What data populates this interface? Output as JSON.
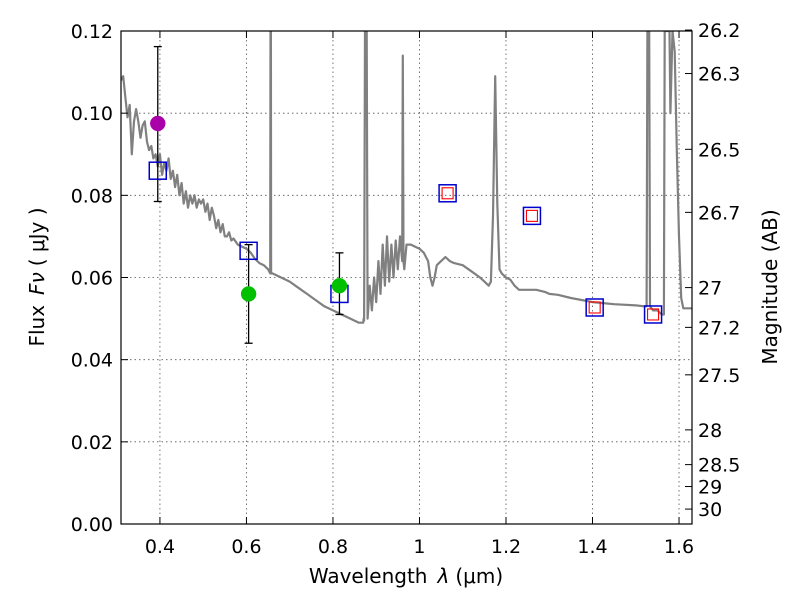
{
  "chart_data": {
    "type": "scatter",
    "xlabel": "Wavelength",
    "xlabel_symbol": "λ",
    "xlabel_units": "(μm)",
    "ylabel": "Flux",
    "ylabel_symbol": "Fν",
    "ylabel_units": "( μJy )",
    "y2label": "Magnitude (AB)",
    "xlim": [
      0.31,
      1.63
    ],
    "ylim": [
      0.0,
      0.12
    ],
    "grid": true,
    "x_ticks": [
      0.4,
      0.6,
      0.8,
      1.0,
      1.2,
      1.4,
      1.6
    ],
    "x_tick_labels": [
      "0.4",
      "0.6",
      "0.8",
      "1",
      "1.2",
      "1.4",
      "1.6"
    ],
    "y_ticks": [
      0.0,
      0.02,
      0.04,
      0.06,
      0.08,
      0.1,
      0.12
    ],
    "y_tick_labels": [
      "0.00",
      "0.02",
      "0.04",
      "0.06",
      "0.08",
      "0.10",
      "0.12"
    ],
    "y2_ticks": [
      {
        "mag": 26.2,
        "label": "26.2"
      },
      {
        "mag": 26.3,
        "label": "26.3"
      },
      {
        "mag": 26.5,
        "label": "26.5"
      },
      {
        "mag": 26.7,
        "label": "26.7"
      },
      {
        "mag": 27.0,
        "label": "27"
      },
      {
        "mag": 27.2,
        "label": "27.2"
      },
      {
        "mag": 27.5,
        "label": "27.5"
      },
      {
        "mag": 28.0,
        "label": "28"
      },
      {
        "mag": 28.5,
        "label": "28.5"
      },
      {
        "mag": 29.0,
        "label": "29"
      },
      {
        "mag": 30.0,
        "label": "30"
      }
    ],
    "colors": {
      "model": "#808080",
      "model_photometry": "#0000cc",
      "upper_limit_model": "#ff0000",
      "observed_green": "#00c000",
      "observed_magenta": "#aa00aa",
      "errorbar": "#000000",
      "grid": "#555555"
    },
    "series": [
      {
        "kind": "line",
        "points": [
          [
            0.31,
            0.108
          ],
          [
            0.315,
            0.109
          ],
          [
            0.32,
            0.104
          ],
          [
            0.325,
            0.099
          ],
          [
            0.33,
            0.102
          ],
          [
            0.335,
            0.09
          ],
          [
            0.34,
            0.098
          ],
          [
            0.345,
            0.101
          ],
          [
            0.35,
            0.098
          ],
          [
            0.355,
            0.094
          ],
          [
            0.36,
            0.097
          ],
          [
            0.365,
            0.098
          ],
          [
            0.37,
            0.093
          ],
          [
            0.375,
            0.091
          ],
          [
            0.38,
            0.092
          ],
          [
            0.385,
            0.089
          ],
          [
            0.39,
            0.09
          ],
          [
            0.395,
            0.087
          ],
          [
            0.4,
            0.09
          ],
          [
            0.405,
            0.085
          ],
          [
            0.41,
            0.088
          ],
          [
            0.415,
            0.086
          ],
          [
            0.42,
            0.089
          ],
          [
            0.425,
            0.084
          ],
          [
            0.43,
            0.086
          ],
          [
            0.435,
            0.082
          ],
          [
            0.44,
            0.085
          ],
          [
            0.445,
            0.08
          ],
          [
            0.45,
            0.083
          ],
          [
            0.455,
            0.078
          ],
          [
            0.46,
            0.081
          ],
          [
            0.465,
            0.077
          ],
          [
            0.47,
            0.08
          ],
          [
            0.475,
            0.078
          ],
          [
            0.48,
            0.08
          ],
          [
            0.485,
            0.077
          ],
          [
            0.49,
            0.079
          ],
          [
            0.495,
            0.078
          ],
          [
            0.5,
            0.079
          ],
          [
            0.505,
            0.076
          ],
          [
            0.51,
            0.078
          ],
          [
            0.515,
            0.074
          ],
          [
            0.52,
            0.077
          ],
          [
            0.525,
            0.075
          ],
          [
            0.53,
            0.072
          ],
          [
            0.535,
            0.074
          ],
          [
            0.54,
            0.071
          ],
          [
            0.545,
            0.073
          ],
          [
            0.55,
            0.07
          ],
          [
            0.555,
            0.07
          ],
          [
            0.56,
            0.071
          ],
          [
            0.565,
            0.069
          ],
          [
            0.57,
            0.0695
          ],
          [
            0.58,
            0.068
          ],
          [
            0.59,
            0.0675
          ],
          [
            0.6,
            0.067
          ],
          [
            0.61,
            0.066
          ],
          [
            0.62,
            0.0645
          ],
          [
            0.63,
            0.0635
          ],
          [
            0.64,
            0.063
          ],
          [
            0.65,
            0.062
          ],
          [
            0.655,
            0.061
          ],
          [
            0.6555,
            0.12
          ],
          [
            0.6565,
            0.12
          ],
          [
            0.657,
            0.061
          ],
          [
            0.66,
            0.061
          ],
          [
            0.68,
            0.06
          ],
          [
            0.7,
            0.059
          ],
          [
            0.72,
            0.0575
          ],
          [
            0.74,
            0.056
          ],
          [
            0.76,
            0.0545
          ],
          [
            0.78,
            0.053
          ],
          [
            0.8,
            0.052
          ],
          [
            0.82,
            0.051
          ],
          [
            0.84,
            0.05
          ],
          [
            0.86,
            0.049
          ],
          [
            0.87,
            0.049
          ],
          [
            0.871,
            0.05
          ],
          [
            0.872,
            0.0495
          ],
          [
            0.874,
            0.12
          ],
          [
            0.878,
            0.12
          ],
          [
            0.88,
            0.05
          ],
          [
            0.885,
            0.058
          ],
          [
            0.89,
            0.052
          ],
          [
            0.895,
            0.06
          ],
          [
            0.9,
            0.054
          ],
          [
            0.905,
            0.064
          ],
          [
            0.91,
            0.056
          ],
          [
            0.915,
            0.068
          ],
          [
            0.92,
            0.058
          ],
          [
            0.925,
            0.07
          ],
          [
            0.93,
            0.059
          ],
          [
            0.935,
            0.068
          ],
          [
            0.94,
            0.06
          ],
          [
            0.945,
            0.069
          ],
          [
            0.95,
            0.062
          ],
          [
            0.955,
            0.07
          ],
          [
            0.96,
            0.064
          ],
          [
            0.9615,
            0.114
          ],
          [
            0.963,
            0.064
          ],
          [
            0.965,
            0.062
          ],
          [
            0.97,
            0.068
          ],
          [
            0.98,
            0.068
          ],
          [
            0.99,
            0.0675
          ],
          [
            1.0,
            0.067
          ],
          [
            1.01,
            0.066
          ],
          [
            1.02,
            0.064
          ],
          [
            1.025,
            0.06
          ],
          [
            1.03,
            0.058
          ],
          [
            1.035,
            0.06
          ],
          [
            1.04,
            0.063
          ],
          [
            1.05,
            0.064
          ],
          [
            1.06,
            0.065
          ],
          [
            1.07,
            0.064
          ],
          [
            1.08,
            0.0635
          ],
          [
            1.1,
            0.063
          ],
          [
            1.12,
            0.0615
          ],
          [
            1.14,
            0.06
          ],
          [
            1.15,
            0.059
          ],
          [
            1.16,
            0.058
          ],
          [
            1.165,
            0.059
          ],
          [
            1.17,
            0.075
          ],
          [
            1.175,
            0.109
          ],
          [
            1.18,
            0.078
          ],
          [
            1.185,
            0.062
          ],
          [
            1.19,
            0.061
          ],
          [
            1.2,
            0.06
          ],
          [
            1.21,
            0.0595
          ],
          [
            1.22,
            0.058
          ],
          [
            1.23,
            0.057
          ],
          [
            1.25,
            0.057
          ],
          [
            1.27,
            0.057
          ],
          [
            1.29,
            0.0565
          ],
          [
            1.3,
            0.056
          ],
          [
            1.32,
            0.0558
          ],
          [
            1.35,
            0.055
          ],
          [
            1.4,
            0.054
          ],
          [
            1.45,
            0.0535
          ],
          [
            1.5,
            0.0532
          ],
          [
            1.52,
            0.053
          ],
          [
            1.525,
            0.053
          ],
          [
            1.527,
            0.12
          ],
          [
            1.531,
            0.12
          ],
          [
            1.533,
            0.053
          ],
          [
            1.54,
            0.052
          ],
          [
            1.55,
            0.052
          ],
          [
            1.56,
            0.051
          ],
          [
            1.565,
            0.051
          ],
          [
            1.567,
            0.12
          ],
          [
            1.57,
            0.12
          ],
          [
            1.575,
            0.12
          ],
          [
            1.578,
            0.12
          ],
          [
            1.58,
            0.1
          ],
          [
            1.585,
            0.12
          ],
          [
            1.59,
            0.115
          ],
          [
            1.595,
            0.09
          ],
          [
            1.6,
            0.07
          ],
          [
            1.605,
            0.055
          ],
          [
            1.61,
            0.0525
          ],
          [
            1.63,
            0.0525
          ]
        ]
      },
      {
        "kind": "model_photometry_squares",
        "points": [
          [
            0.395,
            0.086
          ],
          [
            0.605,
            0.0665
          ],
          [
            0.815,
            0.056
          ],
          [
            1.065,
            0.0805
          ],
          [
            1.26,
            0.075
          ],
          [
            1.405,
            0.0527
          ],
          [
            1.54,
            0.051
          ]
        ]
      },
      {
        "kind": "upper_limit_squares",
        "points": [
          [
            1.065,
            0.0805
          ],
          [
            1.26,
            0.075
          ],
          [
            1.405,
            0.0527
          ],
          [
            1.54,
            0.051
          ]
        ]
      },
      {
        "kind": "observed_points",
        "points": [
          {
            "x": 0.395,
            "y": 0.0975,
            "color": "magenta",
            "yerr_low": 0.0785,
            "yerr_high": 0.1162
          },
          {
            "x": 0.605,
            "y": 0.056,
            "color": "green",
            "yerr_low": 0.044,
            "yerr_high": 0.068
          },
          {
            "x": 0.815,
            "y": 0.058,
            "color": "green",
            "yerr_low": 0.051,
            "yerr_high": 0.066
          }
        ]
      }
    ]
  }
}
